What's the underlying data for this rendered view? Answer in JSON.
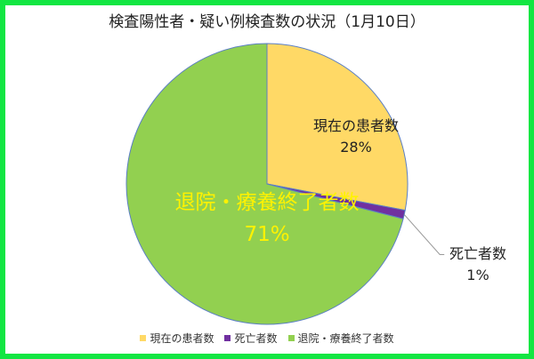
{
  "chart_data": {
    "type": "pie",
    "title": "検査陽性者・疑い例検査数の状況（1月10日）",
    "categories": [
      "現在の患者数",
      "死亡者数",
      "退院・療養終了者数"
    ],
    "values": [
      28,
      1,
      71
    ],
    "data_labels": [
      "28%",
      "1%",
      "71%"
    ],
    "colors": [
      "#ffd966",
      "#7030a0",
      "#92d050"
    ],
    "start_angle": "12 o'clock",
    "direction": "clockwise",
    "legend_position": "bottom"
  },
  "frame": {
    "border_color": "#12e642"
  }
}
